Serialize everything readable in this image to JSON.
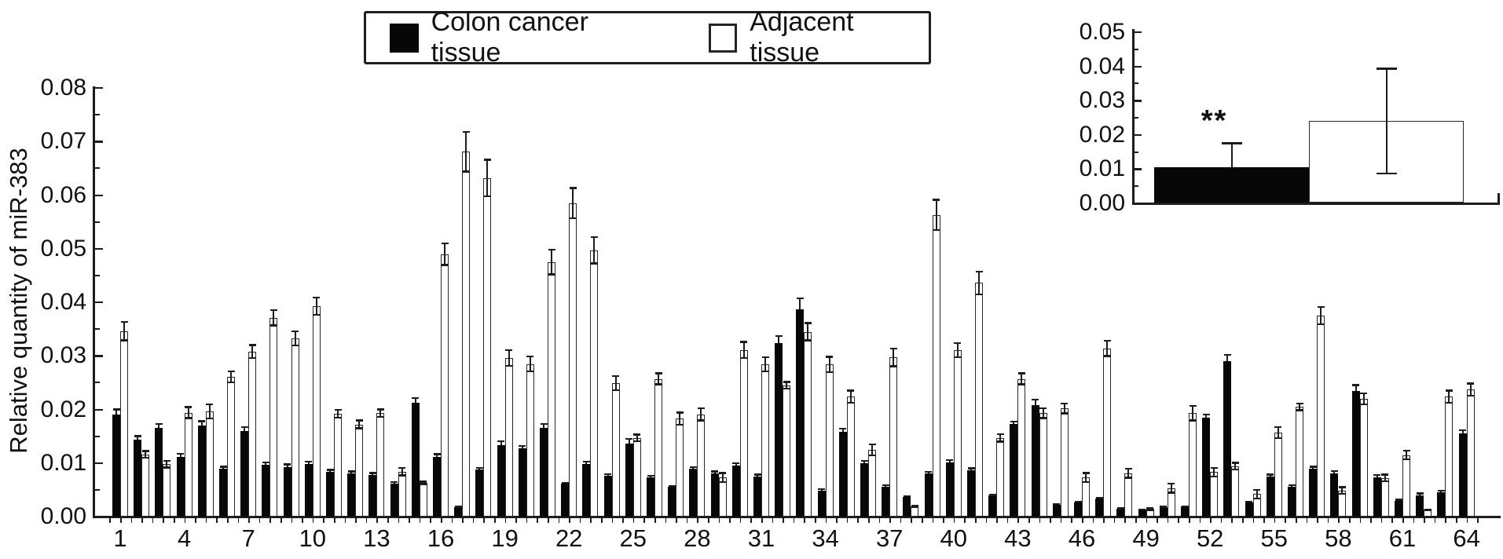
{
  "figure": {
    "background": "#ffffff",
    "axis_color": "#1c1c1c",
    "cancer_color": "#070707",
    "adjacent_color": "#ffffff"
  },
  "legend": {
    "items": [
      {
        "label": "Colon cancer tissue",
        "swatch": "cancer"
      },
      {
        "label": "Adjacent tissue",
        "swatch": "adjacent"
      }
    ]
  },
  "chart_data": [
    {
      "type": "bar",
      "title": "",
      "xlabel": "",
      "ylabel": "Relative quantity of miR-383",
      "ylim": [
        0,
        0.08
      ],
      "ytick_labels": [
        "0.00",
        "0.01",
        "0.02",
        "0.03",
        "0.04",
        "0.05",
        "0.06",
        "0.07",
        "0.08"
      ],
      "xtick_labels": [
        "1",
        "4",
        "7",
        "10",
        "13",
        "16",
        "19",
        "22",
        "25",
        "28",
        "31",
        "34",
        "37",
        "40",
        "43",
        "46",
        "49",
        "52",
        "55",
        "58",
        "61",
        "64"
      ],
      "xtick_step": 3,
      "categories": [
        1,
        2,
        3,
        4,
        5,
        6,
        7,
        8,
        9,
        10,
        11,
        12,
        13,
        14,
        15,
        16,
        17,
        18,
        19,
        20,
        21,
        22,
        23,
        24,
        25,
        26,
        27,
        28,
        29,
        30,
        31,
        32,
        33,
        34,
        35,
        36,
        37,
        38,
        39,
        40,
        41,
        42,
        43,
        44,
        45,
        46,
        47,
        48,
        49,
        50,
        51,
        52,
        53,
        54,
        55,
        56,
        57,
        58,
        59,
        60,
        61,
        62,
        63,
        64
      ],
      "grid": false,
      "legend_position": "top-center",
      "series": [
        {
          "name": "Colon cancer tissue",
          "color": "#070707",
          "values": [
            0.0191,
            0.0144,
            0.0166,
            0.0112,
            0.017,
            0.009,
            0.016,
            0.0096,
            0.0093,
            0.0098,
            0.0084,
            0.0081,
            0.0078,
            0.0062,
            0.0213,
            0.0111,
            0.0017,
            0.0088,
            0.0134,
            0.0127,
            0.0165,
            0.0061,
            0.0098,
            0.0076,
            0.0137,
            0.0073,
            0.0055,
            0.0089,
            0.0081,
            0.0095,
            0.0075,
            0.0324,
            0.0387,
            0.0049,
            0.0158,
            0.01,
            0.0056,
            0.0037,
            0.008,
            0.0101,
            0.0087,
            0.0039,
            0.0173,
            0.0208,
            0.0022,
            0.0027,
            0.0034,
            0.0015,
            0.0013,
            0.0018,
            0.0019,
            0.0184,
            0.029,
            0.0027,
            0.0075,
            0.0056,
            0.009,
            0.0081,
            0.0235,
            0.0074,
            0.003,
            0.0039,
            0.0046,
            0.0156
          ],
          "errors": [
            0.0011,
            0.0008,
            0.0009,
            0.0007,
            0.001,
            0.0005,
            0.0009,
            0.0007,
            0.0006,
            0.0006,
            0.0005,
            0.0005,
            0.0005,
            0.0004,
            0.001,
            0.0007,
            0.0003,
            0.0005,
            0.0008,
            0.0007,
            0.001,
            0.0004,
            0.0006,
            0.0005,
            0.001,
            0.0005,
            0.0004,
            0.0005,
            0.0005,
            0.0006,
            0.0005,
            0.0015,
            0.0022,
            0.0004,
            0.0008,
            0.0006,
            0.0004,
            0.0003,
            0.0005,
            0.0006,
            0.0005,
            0.0003,
            0.0006,
            0.0012,
            0.0003,
            0.0003,
            0.0003,
            0.0002,
            0.0002,
            0.0002,
            0.0002,
            0.0008,
            0.0014,
            0.0003,
            0.0005,
            0.0004,
            0.0005,
            0.0006,
            0.0012,
            0.0005,
            0.0003,
            0.0006,
            0.0004,
            0.0007
          ]
        },
        {
          "name": "Adjacent tissue",
          "color": "#ffffff",
          "values": [
            0.0346,
            0.0116,
            0.0098,
            0.0194,
            0.0196,
            0.0261,
            0.0308,
            0.0371,
            0.0333,
            0.0393,
            0.0192,
            0.0172,
            0.0193,
            0.0084,
            0.0063,
            0.049,
            0.0681,
            0.0632,
            0.0296,
            0.0285,
            0.0475,
            0.0585,
            0.0497,
            0.0249,
            0.0147,
            0.0257,
            0.0183,
            0.0191,
            0.0073,
            0.0311,
            0.0284,
            0.0245,
            0.0345,
            0.0284,
            0.0224,
            0.0125,
            0.0297,
            0.0019,
            0.0563,
            0.0311,
            0.0436,
            0.0147,
            0.0257,
            0.0193,
            0.0202,
            0.0073,
            0.0314,
            0.0081,
            0.0014,
            0.0053,
            0.0193,
            0.0083,
            0.0094,
            0.0042,
            0.0157,
            0.0205,
            0.0375,
            0.0049,
            0.022,
            0.0072,
            0.0115,
            0.0013,
            0.0224,
            0.0237
          ],
          "errors": [
            0.0019,
            0.0008,
            0.0008,
            0.0012,
            0.0015,
            0.0012,
            0.0014,
            0.0016,
            0.0015,
            0.0018,
            0.0009,
            0.0009,
            0.0009,
            0.0009,
            0.0004,
            0.0022,
            0.0039,
            0.0036,
            0.0016,
            0.0016,
            0.0025,
            0.003,
            0.0026,
            0.0015,
            0.0008,
            0.0012,
            0.0013,
            0.0013,
            0.001,
            0.0017,
            0.0015,
            0.0008,
            0.0018,
            0.0016,
            0.0013,
            0.0012,
            0.0018,
            0.0003,
            0.003,
            0.0015,
            0.0023,
            0.0009,
            0.0012,
            0.0011,
            0.0011,
            0.001,
            0.0016,
            0.001,
            0.0003,
            0.001,
            0.0015,
            0.001,
            0.0008,
            0.001,
            0.0012,
            0.0008,
            0.0018,
            0.0008,
            0.0012,
            0.0008,
            0.001,
            0.0002,
            0.0013,
            0.0013
          ]
        }
      ]
    },
    {
      "type": "bar",
      "title": "",
      "xlabel": "",
      "ylabel": "",
      "ylim": [
        0,
        0.05
      ],
      "ytick_labels": [
        "0.00",
        "0.01",
        "0.02",
        "0.03",
        "0.04",
        "0.05"
      ],
      "categories": [
        "Colon cancer tissue",
        "Adjacent tissue"
      ],
      "values": [
        0.0104,
        0.0238
      ],
      "errors": [
        0.0072,
        0.0156
      ],
      "error_caps": [
        "upper",
        "both"
      ],
      "annotation": {
        "text": "**",
        "above_bar_index": 0
      },
      "grid": false
    }
  ]
}
